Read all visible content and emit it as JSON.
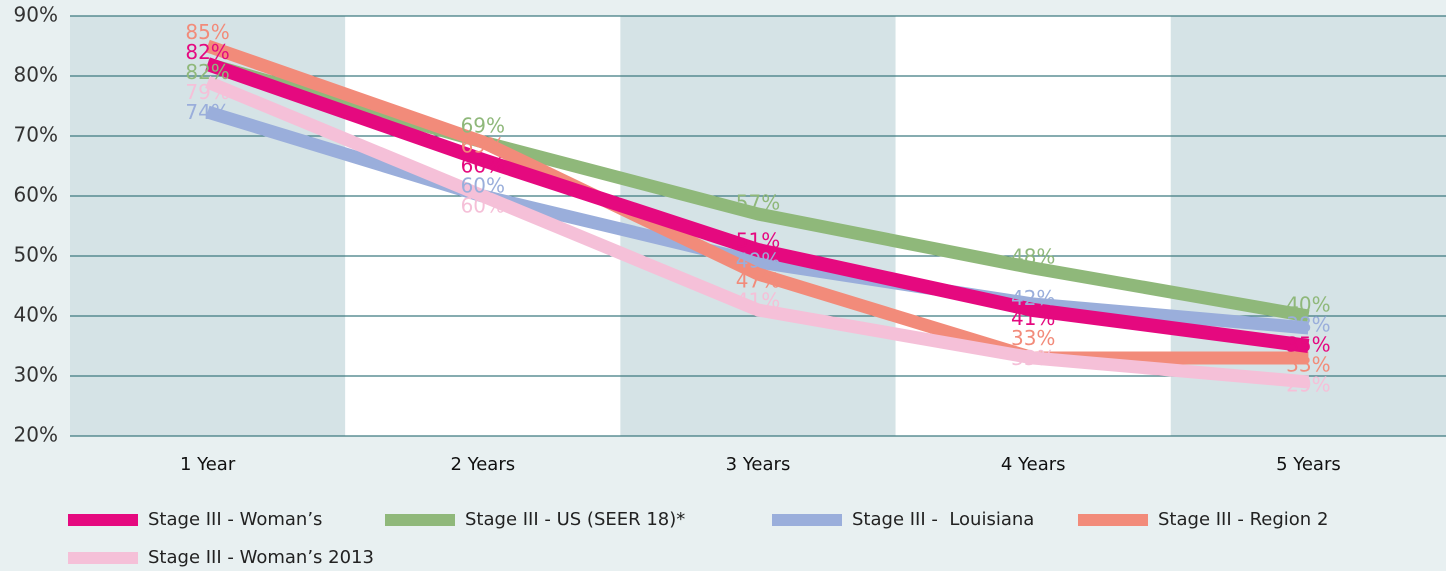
{
  "chart_data": {
    "type": "line",
    "categories": [
      "1 Year",
      "2 Years",
      "3 Years",
      "4 Years",
      "5 Years"
    ],
    "series": [
      {
        "name": "Stage III - Woman’s",
        "color": "#e5097f",
        "values": [
          82,
          66,
          51,
          41,
          35
        ],
        "value_labels": [
          "82%",
          "66%",
          "51%",
          "41%",
          "35%"
        ]
      },
      {
        "name": "Stage III - US (SEER 18)*",
        "color": "#8fb87a",
        "values": [
          82,
          69,
          57,
          48,
          40
        ],
        "value_labels": [
          "82%",
          "69%",
          "57%",
          "48%",
          "40%"
        ]
      },
      {
        "name": "Stage III -  Louisiana",
        "color": "#9aaedb",
        "values": [
          74,
          60,
          49,
          42,
          38
        ],
        "value_labels": [
          "74%",
          "60%",
          "49%",
          "42%",
          "38%"
        ]
      },
      {
        "name": "Stage III - Region 2",
        "color": "#f28b7a",
        "values": [
          85,
          69,
          47,
          33,
          33
        ],
        "value_labels": [
          "85%",
          "69%",
          "47%",
          "33%",
          "33%"
        ]
      },
      {
        "name": "Stage III - Woman’s 2013",
        "color": "#f5c0d8",
        "values": [
          79,
          60,
          41,
          33,
          29
        ],
        "value_labels": [
          "79%",
          "60%",
          "41%",
          "33%",
          "29%"
        ]
      }
    ],
    "ylim": [
      20,
      90
    ],
    "yticks": [
      {
        "value": 20,
        "label": "20%"
      },
      {
        "value": 30,
        "label": "30%"
      },
      {
        "value": 40,
        "label": "40%"
      },
      {
        "value": 50,
        "label": "50%"
      },
      {
        "value": 60,
        "label": "60%"
      },
      {
        "value": 70,
        "label": "70%"
      },
      {
        "value": 80,
        "label": "80%"
      },
      {
        "value": 90,
        "label": "90%"
      }
    ],
    "grid": true
  }
}
